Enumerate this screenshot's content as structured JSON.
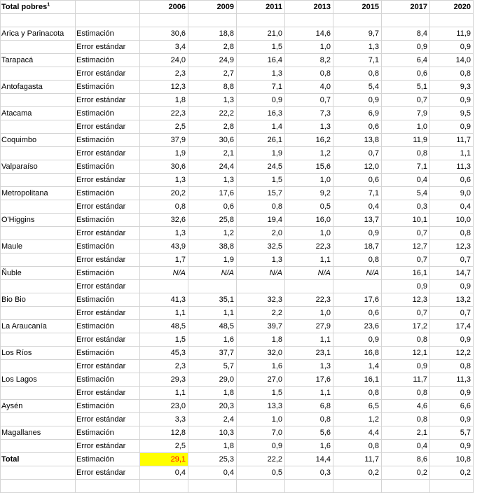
{
  "header": {
    "title": "Total pobres",
    "title_sup": "1",
    "years": [
      "2006",
      "2009",
      "2011",
      "2013",
      "2015",
      "2017",
      "2020"
    ]
  },
  "rows": [
    {
      "region": "Arica y Parinacota",
      "type": "Estimación",
      "values": [
        "30,6",
        "18,8",
        "21,0",
        "14,6",
        "9,7",
        "8,4",
        "11,9"
      ]
    },
    {
      "region": "",
      "type": "Error estándar",
      "values": [
        "3,4",
        "2,8",
        "1,5",
        "1,0",
        "1,3",
        "0,9",
        "0,9"
      ]
    },
    {
      "region": "Tarapacá",
      "type": "Estimación",
      "values": [
        "24,0",
        "24,9",
        "16,4",
        "8,2",
        "7,1",
        "6,4",
        "14,0"
      ]
    },
    {
      "region": "",
      "type": "Error estándar",
      "values": [
        "2,3",
        "2,7",
        "1,3",
        "0,8",
        "0,8",
        "0,6",
        "0,8"
      ]
    },
    {
      "region": "Antofagasta",
      "type": "Estimación",
      "values": [
        "12,3",
        "8,8",
        "7,1",
        "4,0",
        "5,4",
        "5,1",
        "9,3"
      ]
    },
    {
      "region": "",
      "type": "Error estándar",
      "values": [
        "1,8",
        "1,3",
        "0,9",
        "0,7",
        "0,9",
        "0,7",
        "0,9"
      ]
    },
    {
      "region": "Atacama",
      "type": "Estimación",
      "values": [
        "22,3",
        "22,2",
        "16,3",
        "7,3",
        "6,9",
        "7,9",
        "9,5"
      ]
    },
    {
      "region": "",
      "type": "Error estándar",
      "values": [
        "2,5",
        "2,8",
        "1,4",
        "1,3",
        "0,6",
        "1,0",
        "0,9"
      ]
    },
    {
      "region": "Coquimbo",
      "type": "Estimación",
      "values": [
        "37,9",
        "30,6",
        "26,1",
        "16,2",
        "13,8",
        "11,9",
        "11,7"
      ]
    },
    {
      "region": "",
      "type": "Error estándar",
      "values": [
        "1,9",
        "2,1",
        "1,9",
        "1,2",
        "0,7",
        "0,8",
        "1,1"
      ]
    },
    {
      "region": "Valparaíso",
      "type": "Estimación",
      "values": [
        "30,6",
        "24,4",
        "24,5",
        "15,6",
        "12,0",
        "7,1",
        "11,3"
      ]
    },
    {
      "region": "",
      "type": "Error estándar",
      "values": [
        "1,3",
        "1,3",
        "1,5",
        "1,0",
        "0,6",
        "0,4",
        "0,6"
      ]
    },
    {
      "region": "Metropolitana",
      "type": "Estimación",
      "values": [
        "20,2",
        "17,6",
        "15,7",
        "9,2",
        "7,1",
        "5,4",
        "9,0"
      ]
    },
    {
      "region": "",
      "type": "Error estándar",
      "values": [
        "0,8",
        "0,6",
        "0,8",
        "0,5",
        "0,4",
        "0,3",
        "0,4"
      ]
    },
    {
      "region": "O'Higgins",
      "type": "Estimación",
      "values": [
        "32,6",
        "25,8",
        "19,4",
        "16,0",
        "13,7",
        "10,1",
        "10,0"
      ]
    },
    {
      "region": "",
      "type": "Error estándar",
      "values": [
        "1,3",
        "1,2",
        "2,0",
        "1,0",
        "0,9",
        "0,7",
        "0,8"
      ]
    },
    {
      "region": "Maule",
      "type": "Estimación",
      "values": [
        "43,9",
        "38,8",
        "32,5",
        "22,3",
        "18,7",
        "12,7",
        "12,3"
      ]
    },
    {
      "region": "",
      "type": "Error estándar",
      "values": [
        "1,7",
        "1,9",
        "1,3",
        "1,1",
        "0,8",
        "0,7",
        "0,7"
      ]
    },
    {
      "region": "Ñuble",
      "type": "Estimación",
      "values": [
        "N/A",
        "N/A",
        "N/A",
        "N/A",
        "N/A",
        "16,1",
        "14,7"
      ],
      "na_count": 5
    },
    {
      "region": "",
      "type": "Error estándar",
      "values": [
        "",
        "",
        "",
        "",
        "",
        "0,9",
        "0,9"
      ]
    },
    {
      "region": "Bio Bio",
      "type": "Estimación",
      "values": [
        "41,3",
        "35,1",
        "32,3",
        "22,3",
        "17,6",
        "12,3",
        "13,2"
      ]
    },
    {
      "region": "",
      "type": "Error estándar",
      "values": [
        "1,1",
        "1,1",
        "2,2",
        "1,0",
        "0,6",
        "0,7",
        "0,7"
      ]
    },
    {
      "region": "La Araucanía",
      "type": "Estimación",
      "values": [
        "48,5",
        "48,5",
        "39,7",
        "27,9",
        "23,6",
        "17,2",
        "17,4"
      ]
    },
    {
      "region": "",
      "type": "Error estándar",
      "values": [
        "1,5",
        "1,6",
        "1,8",
        "1,1",
        "0,9",
        "0,8",
        "0,9"
      ]
    },
    {
      "region": "Los Ríos",
      "type": "Estimación",
      "values": [
        "45,3",
        "37,7",
        "32,0",
        "23,1",
        "16,8",
        "12,1",
        "12,2"
      ]
    },
    {
      "region": "",
      "type": "Error estándar",
      "values": [
        "2,3",
        "5,7",
        "1,6",
        "1,3",
        "1,4",
        "0,9",
        "0,8"
      ]
    },
    {
      "region": "Los Lagos",
      "type": "Estimación",
      "values": [
        "29,3",
        "29,0",
        "27,0",
        "17,6",
        "16,1",
        "11,7",
        "11,3"
      ]
    },
    {
      "region": "",
      "type": "Error estándar",
      "values": [
        "1,1",
        "1,8",
        "1,5",
        "1,1",
        "0,8",
        "0,8",
        "0,9"
      ]
    },
    {
      "region": "Aysén",
      "type": "Estimación",
      "values": [
        "23,0",
        "20,3",
        "13,3",
        "6,8",
        "6,5",
        "4,6",
        "6,6"
      ]
    },
    {
      "region": "",
      "type": "Error estándar",
      "values": [
        "3,3",
        "2,4",
        "1,0",
        "0,8",
        "1,2",
        "0,8",
        "0,9"
      ]
    },
    {
      "region": "Magallanes",
      "type": "Estimación",
      "values": [
        "12,8",
        "10,3",
        "7,0",
        "5,6",
        "4,4",
        "2,1",
        "5,7"
      ]
    },
    {
      "region": "",
      "type": "Error estándar",
      "values": [
        "2,5",
        "1,8",
        "0,9",
        "1,6",
        "0,8",
        "0,4",
        "0,9"
      ]
    },
    {
      "region": "Total",
      "type": "Estimación",
      "values": [
        "29,1",
        "25,3",
        "22,2",
        "14,4",
        "11,7",
        "8,6",
        "10,8"
      ],
      "bold_region": true,
      "highlight_first": true
    },
    {
      "region": "",
      "type": "Error estándar",
      "values": [
        "0,4",
        "0,4",
        "0,5",
        "0,3",
        "0,2",
        "0,2",
        "0,2"
      ]
    }
  ],
  "colors": {
    "highlight_bg": "#ffff00",
    "highlight_text": "#ff0000",
    "grid": "#d4d4d4"
  }
}
